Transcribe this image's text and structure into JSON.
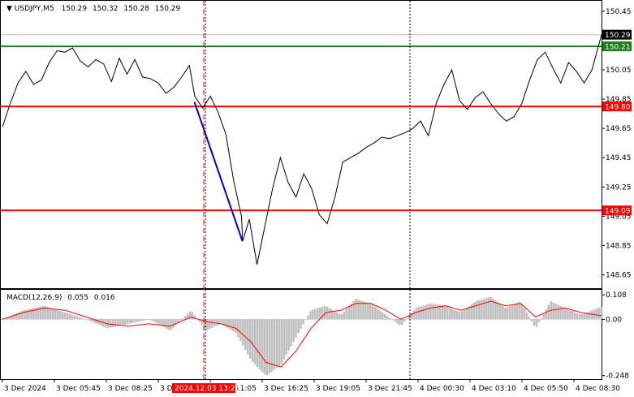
{
  "header": {
    "symbol": "USDJPY,M5",
    "open": "150.29",
    "high": "150.32",
    "low": "150.28",
    "close": "150.29"
  },
  "macd_panel": {
    "label": "MACD(12,26,9)",
    "main_value": "0.055",
    "signal_value": "0.016"
  },
  "chart_data": [
    {
      "type": "line",
      "panel": "price",
      "ylim": [
        148.57,
        150.51
      ],
      "y_ticks": [
        "150.45",
        "150.05",
        "149.85",
        "149.65",
        "149.45",
        "149.25",
        "149.05",
        "148.85",
        "148.65"
      ],
      "y_tick_values": [
        150.45,
        150.05,
        149.85,
        149.65,
        149.45,
        149.25,
        149.05,
        148.85,
        148.65
      ],
      "x_ticks": [
        "3 Dec 2024",
        "3 Dec 05:45",
        "3 Dec 08:25",
        "3 Dec 13:25",
        "3 Dec 16:25",
        "3 Dec 19:05",
        "3 Dec 21:45",
        "4 Dec 00:30",
        "4 Dec 03:10",
        "4 Dec 05:50",
        "4 Dec 08:30"
      ],
      "x_tick_hidden": "3 Dec 11:05",
      "cursor_time_label": "2024.12.03 13:25",
      "current_price_label": "150.29",
      "current_price": 150.29,
      "horizontal_levels": [
        {
          "label": "150.21",
          "value": 150.21,
          "color": "#1e7d1e"
        },
        {
          "label": "149.80",
          "value": 149.8,
          "color": "#ff0000"
        },
        {
          "label": "149.09",
          "value": 149.09,
          "color": "#ff0000"
        }
      ],
      "trend_line": {
        "from": [
          0.3205,
          149.83
        ],
        "to": [
          0.4006,
          148.88
        ],
        "color": "#0000cc"
      },
      "series": [
        {
          "line_color": "#000000",
          "x": [
            0.0,
            0.013,
            0.026,
            0.039,
            0.052,
            0.065,
            0.078,
            0.091,
            0.104,
            0.117,
            0.13,
            0.143,
            0.156,
            0.169,
            0.182,
            0.195,
            0.208,
            0.221,
            0.234,
            0.247,
            0.26,
            0.273,
            0.286,
            0.299,
            0.312,
            0.321,
            0.334,
            0.347,
            0.36,
            0.373,
            0.386,
            0.399,
            0.401,
            0.412,
            0.425,
            0.438,
            0.451,
            0.464,
            0.477,
            0.49,
            0.503,
            0.516,
            0.529,
            0.542,
            0.555,
            0.568,
            0.581,
            0.594,
            0.607,
            0.62,
            0.633,
            0.646,
            0.659,
            0.672,
            0.685,
            0.698,
            0.711,
            0.724,
            0.737,
            0.75,
            0.763,
            0.776,
            0.789,
            0.802,
            0.815,
            0.828,
            0.841,
            0.854,
            0.867,
            0.88,
            0.893,
            0.906,
            0.919,
            0.932,
            0.945,
            0.958,
            0.971,
            0.984,
            1.0
          ],
          "y": [
            149.66,
            149.82,
            149.96,
            150.04,
            149.95,
            149.98,
            150.1,
            150.18,
            150.17,
            150.2,
            150.11,
            150.07,
            150.12,
            150.09,
            149.97,
            150.13,
            150.02,
            150.12,
            150.0,
            149.99,
            149.96,
            149.89,
            149.93,
            150.0,
            150.08,
            149.87,
            149.79,
            149.87,
            149.76,
            149.61,
            149.29,
            149.05,
            148.88,
            149.03,
            148.72,
            148.98,
            149.24,
            149.45,
            149.28,
            149.18,
            149.34,
            149.24,
            149.06,
            149.0,
            149.18,
            149.42,
            149.45,
            149.48,
            149.52,
            149.55,
            149.59,
            149.58,
            149.6,
            149.62,
            149.65,
            149.7,
            149.6,
            149.82,
            149.95,
            150.05,
            149.84,
            149.78,
            149.86,
            149.9,
            149.82,
            149.75,
            149.7,
            149.73,
            149.82,
            149.98,
            150.12,
            150.17,
            150.06,
            149.96,
            150.1,
            150.04,
            149.96,
            150.05,
            150.29
          ]
        }
      ]
    },
    {
      "type": "bar",
      "panel": "macd",
      "title": "MACD(12,26,9)",
      "ylim": [
        -0.26,
        0.13
      ],
      "y_ticks": [
        "0.108",
        "0.00",
        "-0.248"
      ],
      "y_tick_values": [
        0.108,
        0.0,
        -0.248
      ],
      "bar_color": "#c0c0c0",
      "signal_color": "#ff0000",
      "x": [
        0.0,
        0.035,
        0.07,
        0.105,
        0.14,
        0.175,
        0.21,
        0.245,
        0.28,
        0.315,
        0.34,
        0.365,
        0.39,
        0.415,
        0.44,
        0.465,
        0.49,
        0.515,
        0.54,
        0.565,
        0.59,
        0.615,
        0.64,
        0.665,
        0.69,
        0.715,
        0.74,
        0.765,
        0.79,
        0.815,
        0.84,
        0.865,
        0.89,
        0.915,
        0.94,
        0.965,
        1.0
      ],
      "histogram": [
        0.0,
        0.04,
        0.06,
        0.03,
        0.0,
        -0.04,
        -0.02,
        0.0,
        -0.05,
        0.04,
        -0.05,
        -0.02,
        -0.06,
        -0.18,
        -0.25,
        -0.2,
        -0.08,
        0.04,
        0.06,
        0.02,
        0.09,
        0.07,
        0.02,
        -0.03,
        0.05,
        0.07,
        0.06,
        0.03,
        0.08,
        0.1,
        0.05,
        0.08,
        -0.04,
        0.08,
        0.05,
        0.02,
        0.055
      ],
      "signal": [
        0.0,
        0.03,
        0.05,
        0.04,
        0.01,
        -0.02,
        -0.03,
        -0.02,
        -0.03,
        0.01,
        -0.01,
        -0.02,
        -0.04,
        -0.1,
        -0.19,
        -0.21,
        -0.14,
        -0.04,
        0.03,
        0.04,
        0.07,
        0.07,
        0.04,
        0.0,
        0.03,
        0.05,
        0.06,
        0.04,
        0.06,
        0.08,
        0.06,
        0.07,
        0.01,
        0.04,
        0.05,
        0.03,
        0.016
      ]
    }
  ]
}
